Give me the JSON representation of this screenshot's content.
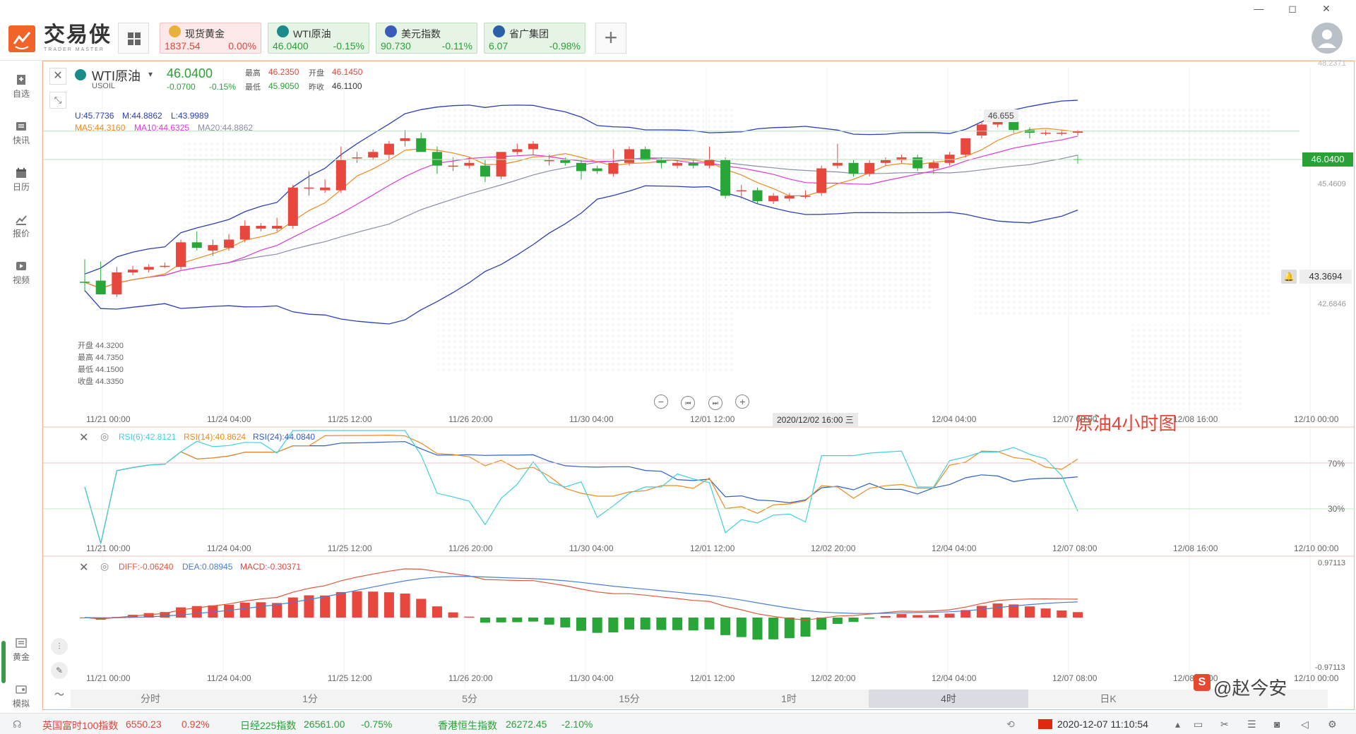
{
  "brand": {
    "name": "交易侠",
    "sub": "TRADER MASTER"
  },
  "window_controls": [
    "—",
    "◻",
    "✕"
  ],
  "quote_tiles": [
    {
      "name": "现货黄金",
      "price": "1837.54",
      "change": "0.00%",
      "tone": "red",
      "icon_color": "#e8b23a"
    },
    {
      "name": "WTI原油",
      "price": "46.0400",
      "change": "-0.15%",
      "tone": "green",
      "icon_color": "#1a8a8a"
    },
    {
      "name": "美元指数",
      "price": "90.730",
      "change": "-0.11%",
      "tone": "green",
      "icon_color": "#3a5bb8"
    },
    {
      "name": "省广集团",
      "price": "6.07",
      "change": "-0.98%",
      "tone": "green",
      "icon_color": "#2b5fa8"
    }
  ],
  "sidebar": {
    "items": [
      {
        "label": "自选",
        "icon": "bookmark-icon"
      },
      {
        "label": "快讯",
        "icon": "news-icon"
      },
      {
        "label": "日历",
        "icon": "calendar-icon"
      },
      {
        "label": "报价",
        "icon": "quote-chart-icon"
      },
      {
        "label": "视频",
        "icon": "video-icon"
      }
    ],
    "bottom_items": [
      {
        "label": "黄金",
        "icon": "gold-icon"
      },
      {
        "label": "模拟",
        "icon": "simulate-icon"
      }
    ]
  },
  "symbol": {
    "name": "WTI原油",
    "code": "USOIL",
    "price": "46.0400",
    "change": "-0.0700",
    "change_pct": "-0.15%",
    "high_label": "最高",
    "high": "46.2350",
    "open_label": "开盘",
    "open": "46.1450",
    "low_label": "最低",
    "low": "45.9050",
    "prev_label": "昨收",
    "prev": "46.1100"
  },
  "indicators": {
    "boll": {
      "u": "U:45.7736",
      "m": "M:44.8862",
      "l": "L:43.9989"
    },
    "ma": {
      "ma5": "MA5:44.3160",
      "ma10": "MA10:44.6325",
      "ma20": "MA20:44.8862"
    },
    "rsi": {
      "r6": "RSI(6):42.8121",
      "r14": "RSI(14):40.8624",
      "r24": "RSI(24):44.0840"
    },
    "macd": {
      "diff": "DIFF:-0.06240",
      "dea": "DEA:0.08945",
      "macd": "MACD:-0.30371"
    }
  },
  "hover_box": {
    "open": "开盘 44.3200",
    "high": "最高 44.7350",
    "low": "最低 44.1500",
    "close": "收盘 44.3350"
  },
  "price_axis": {
    "top": "48.2371",
    "current": "46.0400",
    "l1": "45.4609",
    "alert": "43.3694",
    "l2": "42.6846"
  },
  "peak_label": "46.655",
  "rsi_axis": [
    "70%",
    "30%"
  ],
  "macd_axis": [
    "0.97113",
    "-0.97113"
  ],
  "time_axis": [
    "11/21 00:00",
    "11/24 04:00",
    "11/25 12:00",
    "11/26 20:00",
    "11/30 04:00",
    "12/01 12:00",
    "12/02 20:00",
    "12/04 04:00",
    "12/07 08:00",
    "12/08 16:00",
    "12/10 00:00"
  ],
  "crosshair_time": "2020/12/02 16:00 三",
  "annotation": "原油4小时图",
  "timeframes": [
    {
      "label": "分时",
      "active": false
    },
    {
      "label": "1分",
      "active": false
    },
    {
      "label": "5分",
      "active": false
    },
    {
      "label": "15分",
      "active": false
    },
    {
      "label": "1时",
      "active": false
    },
    {
      "label": "4时",
      "active": true
    },
    {
      "label": "日K",
      "active": false
    }
  ],
  "watermark": "@赵今安",
  "status_bar": {
    "items": [
      {
        "name": "英国富时100指数",
        "value": "6550.23",
        "change": "0.92%",
        "tone": "red"
      },
      {
        "name": "日经225指数",
        "value": "26561.00",
        "change": "-0.75%",
        "tone": "green"
      },
      {
        "name": "香港恒生指数",
        "value": "26272.45",
        "change": "-2.10%",
        "tone": "green"
      }
    ],
    "datetime": "2020-12-07 11:10:54"
  },
  "colors": {
    "up": "#e8473e",
    "down": "#28a637",
    "boll": "#2c3fb8",
    "ma5": "#f08a1c",
    "ma10": "#e03ad6",
    "ma20": "#8a8fa8",
    "rsi6": "#3ed0e0",
    "rsi14": "#f08a1c",
    "rsi24": "#2c5fc8",
    "diff": "#e0593a",
    "dea": "#4a7fd8"
  },
  "chart_data": {
    "type": "candlestick",
    "candles": [
      {
        "o": 44.33,
        "h": 44.74,
        "l": 44.15,
        "c": 44.32
      },
      {
        "o": 44.35,
        "h": 44.7,
        "l": 44.1,
        "c": 44.1
      },
      {
        "o": 44.1,
        "h": 44.6,
        "l": 44.05,
        "c": 44.5
      },
      {
        "o": 44.5,
        "h": 44.62,
        "l": 44.45,
        "c": 44.55
      },
      {
        "o": 44.55,
        "h": 44.65,
        "l": 44.5,
        "c": 44.6
      },
      {
        "o": 44.6,
        "h": 44.68,
        "l": 44.58,
        "c": 44.62
      },
      {
        "o": 44.6,
        "h": 45.1,
        "l": 44.55,
        "c": 45.05
      },
      {
        "o": 45.05,
        "h": 45.25,
        "l": 44.9,
        "c": 44.95
      },
      {
        "o": 44.9,
        "h": 45.1,
        "l": 44.8,
        "c": 45.0
      },
      {
        "o": 44.95,
        "h": 45.2,
        "l": 44.9,
        "c": 45.1
      },
      {
        "o": 45.1,
        "h": 45.45,
        "l": 45.05,
        "c": 45.35
      },
      {
        "o": 45.3,
        "h": 45.4,
        "l": 45.25,
        "c": 45.35
      },
      {
        "o": 45.3,
        "h": 45.5,
        "l": 45.25,
        "c": 45.35
      },
      {
        "o": 45.35,
        "h": 46.1,
        "l": 45.3,
        "c": 46.05
      },
      {
        "o": 46.05,
        "h": 46.35,
        "l": 45.9,
        "c": 46.05
      },
      {
        "o": 46.0,
        "h": 46.2,
        "l": 45.95,
        "c": 46.05
      },
      {
        "o": 46.0,
        "h": 46.8,
        "l": 45.95,
        "c": 46.55
      },
      {
        "o": 46.6,
        "h": 46.7,
        "l": 46.5,
        "c": 46.6
      },
      {
        "o": 46.6,
        "h": 46.75,
        "l": 46.55,
        "c": 46.7
      },
      {
        "o": 46.65,
        "h": 46.9,
        "l": 46.55,
        "c": 46.85
      },
      {
        "o": 46.9,
        "h": 47.1,
        "l": 46.8,
        "c": 46.95
      },
      {
        "o": 46.95,
        "h": 47.05,
        "l": 46.7,
        "c": 46.7
      },
      {
        "o": 46.7,
        "h": 46.8,
        "l": 46.3,
        "c": 46.45
      },
      {
        "o": 46.45,
        "h": 46.6,
        "l": 46.35,
        "c": 46.45
      },
      {
        "o": 46.45,
        "h": 46.6,
        "l": 46.4,
        "c": 46.5
      },
      {
        "o": 46.45,
        "h": 46.55,
        "l": 46.15,
        "c": 46.25
      },
      {
        "o": 46.25,
        "h": 46.7,
        "l": 46.2,
        "c": 46.7
      },
      {
        "o": 46.7,
        "h": 46.85,
        "l": 46.65,
        "c": 46.75
      },
      {
        "o": 46.75,
        "h": 46.9,
        "l": 46.65,
        "c": 46.85
      },
      {
        "o": 46.55,
        "h": 46.65,
        "l": 46.45,
        "c": 46.55
      },
      {
        "o": 46.55,
        "h": 46.6,
        "l": 46.45,
        "c": 46.5
      },
      {
        "o": 46.5,
        "h": 46.55,
        "l": 46.2,
        "c": 46.35
      },
      {
        "o": 46.4,
        "h": 46.45,
        "l": 46.3,
        "c": 46.35
      },
      {
        "o": 46.3,
        "h": 46.75,
        "l": 46.25,
        "c": 46.5
      },
      {
        "o": 46.5,
        "h": 46.8,
        "l": 46.45,
        "c": 46.75
      },
      {
        "o": 46.75,
        "h": 46.8,
        "l": 46.55,
        "c": 46.55
      },
      {
        "o": 46.55,
        "h": 46.6,
        "l": 46.4,
        "c": 46.5
      },
      {
        "o": 46.45,
        "h": 46.55,
        "l": 46.4,
        "c": 46.5
      },
      {
        "o": 46.5,
        "h": 46.55,
        "l": 46.4,
        "c": 46.45
      },
      {
        "o": 46.45,
        "h": 46.8,
        "l": 46.4,
        "c": 46.55
      },
      {
        "o": 46.55,
        "h": 46.6,
        "l": 45.85,
        "c": 45.9
      },
      {
        "o": 46.0,
        "h": 46.1,
        "l": 45.85,
        "c": 46.0
      },
      {
        "o": 46.0,
        "h": 46.05,
        "l": 45.75,
        "c": 45.8
      },
      {
        "o": 45.8,
        "h": 45.95,
        "l": 45.75,
        "c": 45.9
      },
      {
        "o": 45.85,
        "h": 45.95,
        "l": 45.8,
        "c": 45.9
      },
      {
        "o": 45.9,
        "h": 46.0,
        "l": 45.85,
        "c": 45.9
      },
      {
        "o": 45.95,
        "h": 46.45,
        "l": 45.9,
        "c": 46.4
      },
      {
        "o": 46.45,
        "h": 46.85,
        "l": 46.4,
        "c": 46.5
      },
      {
        "o": 46.5,
        "h": 46.55,
        "l": 46.25,
        "c": 46.3
      },
      {
        "o": 46.3,
        "h": 46.55,
        "l": 46.25,
        "c": 46.5
      },
      {
        "o": 46.5,
        "h": 46.6,
        "l": 46.45,
        "c": 46.55
      },
      {
        "o": 46.55,
        "h": 46.65,
        "l": 46.5,
        "c": 46.6
      },
      {
        "o": 46.6,
        "h": 46.65,
        "l": 46.35,
        "c": 46.4
      },
      {
        "o": 46.4,
        "h": 46.55,
        "l": 46.3,
        "c": 46.5
      },
      {
        "o": 46.5,
        "h": 46.7,
        "l": 46.45,
        "c": 46.65
      },
      {
        "o": 46.65,
        "h": 46.95,
        "l": 46.6,
        "c": 46.95
      },
      {
        "o": 47.0,
        "h": 47.25,
        "l": 46.95,
        "c": 47.2
      },
      {
        "o": 47.2,
        "h": 47.3,
        "l": 47.15,
        "c": 47.25
      },
      {
        "o": 47.25,
        "h": 47.35,
        "l": 47.05,
        "c": 47.1
      },
      {
        "o": 47.1,
        "h": 47.15,
        "l": 46.95,
        "c": 47.05
      },
      {
        "o": 47.05,
        "h": 47.1,
        "l": 47.0,
        "c": 47.05
      },
      {
        "o": 47.05,
        "h": 47.1,
        "l": 47.0,
        "c": 47.05
      },
      {
        "o": 47.05,
        "h": 47.1,
        "l": 47.0,
        "c": 47.08
      }
    ]
  }
}
